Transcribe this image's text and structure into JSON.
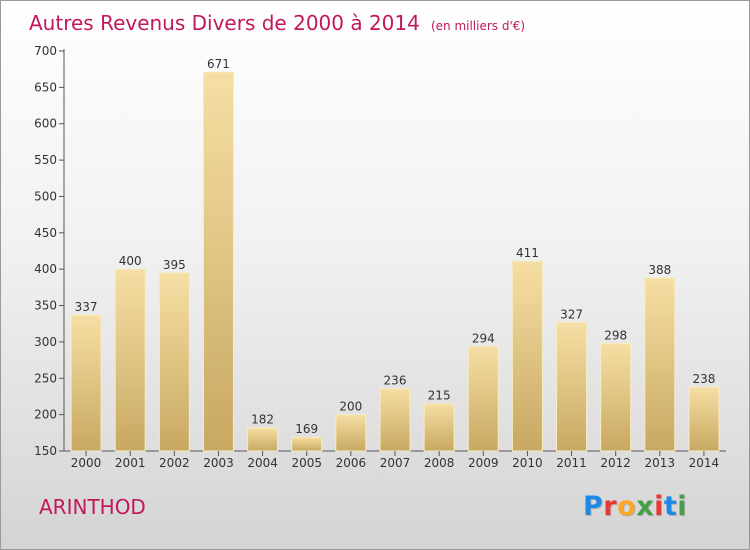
{
  "title": "Autres Revenus Divers de 2000 à 2014",
  "unit": "(en milliers d'€)",
  "commune": "ARINTHOD",
  "brand": {
    "text": "Proxiti",
    "letter_colors": [
      "#1e88e5",
      "#e53935",
      "#f9a825",
      "#43a047",
      "#e53935",
      "#1e88e5",
      "#43a047"
    ]
  },
  "colors": {
    "title": "#c2185b",
    "bar_top": "#f6dfa4",
    "bar_bottom": "#c8a862"
  },
  "chart_data": {
    "type": "bar",
    "categories": [
      "2000",
      "2001",
      "2002",
      "2003",
      "2004",
      "2005",
      "2006",
      "2007",
      "2008",
      "2009",
      "2010",
      "2011",
      "2012",
      "2013",
      "2014"
    ],
    "values": [
      337,
      400,
      395,
      671,
      182,
      169,
      200,
      236,
      215,
      294,
      411,
      327,
      298,
      388,
      238
    ],
    "ylim": [
      150,
      700
    ],
    "yticks": [
      150,
      200,
      250,
      300,
      350,
      400,
      450,
      500,
      550,
      600,
      650,
      700
    ],
    "grid": false,
    "legend": "none",
    "title": "Autres Revenus Divers de 2000 à 2014",
    "xlabel": "",
    "ylabel": ""
  }
}
